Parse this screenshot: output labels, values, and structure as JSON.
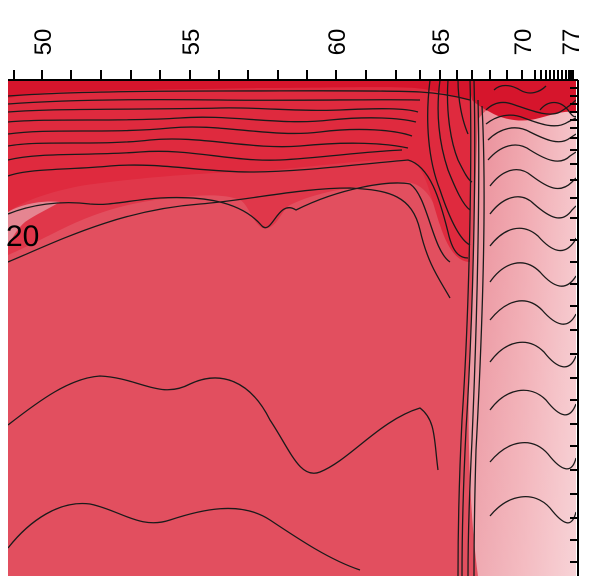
{
  "chart_data": {
    "type": "heatmap",
    "subtype": "filled-contour",
    "title": "",
    "xlabel": "",
    "ylabel": "",
    "x_axis_position": "top",
    "x_tick_labels": [
      "50",
      "55",
      "60",
      "65",
      "70",
      "77"
    ],
    "x_ticks": [
      50,
      55,
      60,
      65,
      70,
      77
    ],
    "xlim": [
      48,
      77
    ],
    "right_axis_ticks": "unlabeled",
    "contour_labels": [
      {
        "text": "20",
        "x": 48.2
      }
    ],
    "color_levels": [
      {
        "name": "darkest",
        "color": "#d6152c"
      },
      {
        "name": "dark",
        "color": "#df2a3e"
      },
      {
        "name": "upper",
        "color": "#e0374a"
      },
      {
        "name": "main",
        "color": "#e24f5f"
      },
      {
        "name": "mid-light",
        "color": "#e87b87"
      },
      {
        "name": "light",
        "color": "#f0a2ab"
      },
      {
        "name": "lightest",
        "color": "#f4c0c6"
      }
    ],
    "grid": false,
    "legend": "none"
  }
}
